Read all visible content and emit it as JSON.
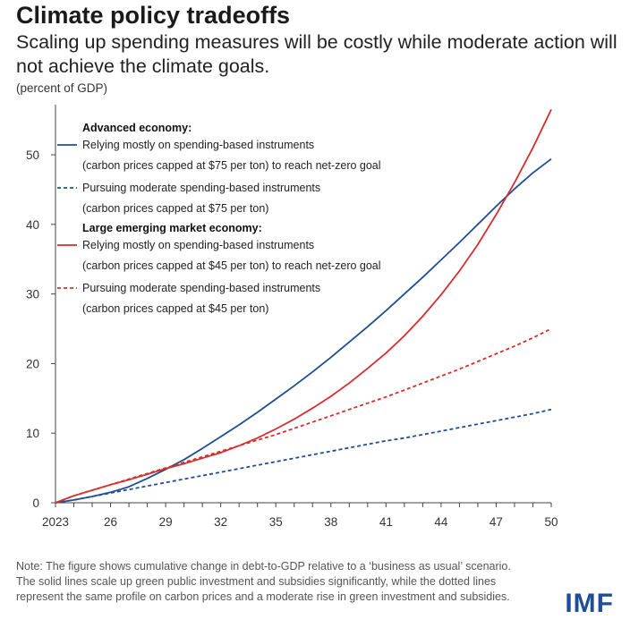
{
  "header": {
    "title": "Climate policy tradeoffs",
    "subtitle": "Scaling up spending measures will be costly while moderate action will not achieve the climate goals.",
    "unit": "(percent of GDP)"
  },
  "chart_data": {
    "type": "line",
    "x_tick_labels": [
      "2023",
      "26",
      "29",
      "32",
      "35",
      "38",
      "41",
      "44",
      "47",
      "50"
    ],
    "y_ticks": [
      0,
      10,
      20,
      30,
      40,
      50
    ],
    "xlim": [
      2023,
      2050
    ],
    "ylim": [
      0,
      56
    ],
    "grid": false,
    "legend_position": "top-left",
    "legend_groups": [
      {
        "heading": "Advanced economy:",
        "entries": [
          {
            "line1": "Relying mostly on spending-based instruments",
            "line2": "(carbon prices capped at $75 per ton) to reach net-zero goal"
          },
          {
            "line1": "Pursuing moderate spending-based instruments",
            "line2": "(carbon prices capped at $75 per ton)"
          }
        ]
      },
      {
        "heading": "Large emerging market economy:",
        "entries": [
          {
            "line1": "Relying mostly on spending-based instruments",
            "line2": "(carbon prices capped at $45 per ton) to reach net-zero goal"
          },
          {
            "line1": "Pursuing moderate spending-based instruments",
            "line2": "(carbon prices capped at $45 per ton)"
          }
        ]
      }
    ],
    "x": [
      2023,
      2024,
      2025,
      2026,
      2027,
      2028,
      2029,
      2030,
      2031,
      2032,
      2033,
      2034,
      2035,
      2036,
      2037,
      2038,
      2039,
      2040,
      2041,
      2042,
      2043,
      2044,
      2045,
      2046,
      2047,
      2048,
      2049,
      2050
    ],
    "series": [
      {
        "color": "#1f4e96",
        "dash": false,
        "values": [
          0,
          0.4,
          0.9,
          1.5,
          2.3,
          3.5,
          4.8,
          6.2,
          7.8,
          9.5,
          11.2,
          13.0,
          14.9,
          16.8,
          18.8,
          20.9,
          23.1,
          25.3,
          27.6,
          30.0,
          32.4,
          34.9,
          37.4,
          40.0,
          42.6,
          45.1,
          47.4,
          49.4
        ]
      },
      {
        "color": "#1f4e96",
        "dash": true,
        "values": [
          0,
          0.4,
          0.9,
          1.4,
          1.9,
          2.4,
          2.9,
          3.4,
          3.9,
          4.4,
          4.9,
          5.4,
          5.9,
          6.4,
          6.9,
          7.4,
          7.9,
          8.4,
          8.9,
          9.3,
          9.8,
          10.3,
          10.8,
          11.3,
          11.8,
          12.3,
          12.8,
          13.4
        ]
      },
      {
        "color": "#d62e2e",
        "dash": false,
        "values": [
          0,
          1.0,
          1.8,
          2.6,
          3.3,
          4.1,
          4.9,
          5.6,
          6.4,
          7.2,
          8.2,
          9.3,
          10.6,
          12.0,
          13.6,
          15.3,
          17.2,
          19.3,
          21.5,
          24.0,
          26.8,
          29.9,
          33.3,
          37.1,
          41.4,
          46.0,
          51.0,
          56.5
        ]
      },
      {
        "color": "#d62e2e",
        "dash": true,
        "values": [
          0,
          1.0,
          1.8,
          2.6,
          3.4,
          4.2,
          5.0,
          5.8,
          6.6,
          7.4,
          8.2,
          9.0,
          9.8,
          10.7,
          11.6,
          12.5,
          13.4,
          14.3,
          15.2,
          16.2,
          17.2,
          18.2,
          19.2,
          20.3,
          21.4,
          22.5,
          23.7,
          25.0
        ]
      }
    ]
  },
  "note": "Note: The figure shows cumulative change in debt-to-GDP relative to a ‘business as usual’ scenario. The solid lines scale up green public investment and subsidies significantly, while the dotted lines represent the same profile on carbon prices and a moderate rise in green investment and subsidies.",
  "brand": {
    "logo_text": "IMF",
    "logo_color": "#1f4e96"
  }
}
